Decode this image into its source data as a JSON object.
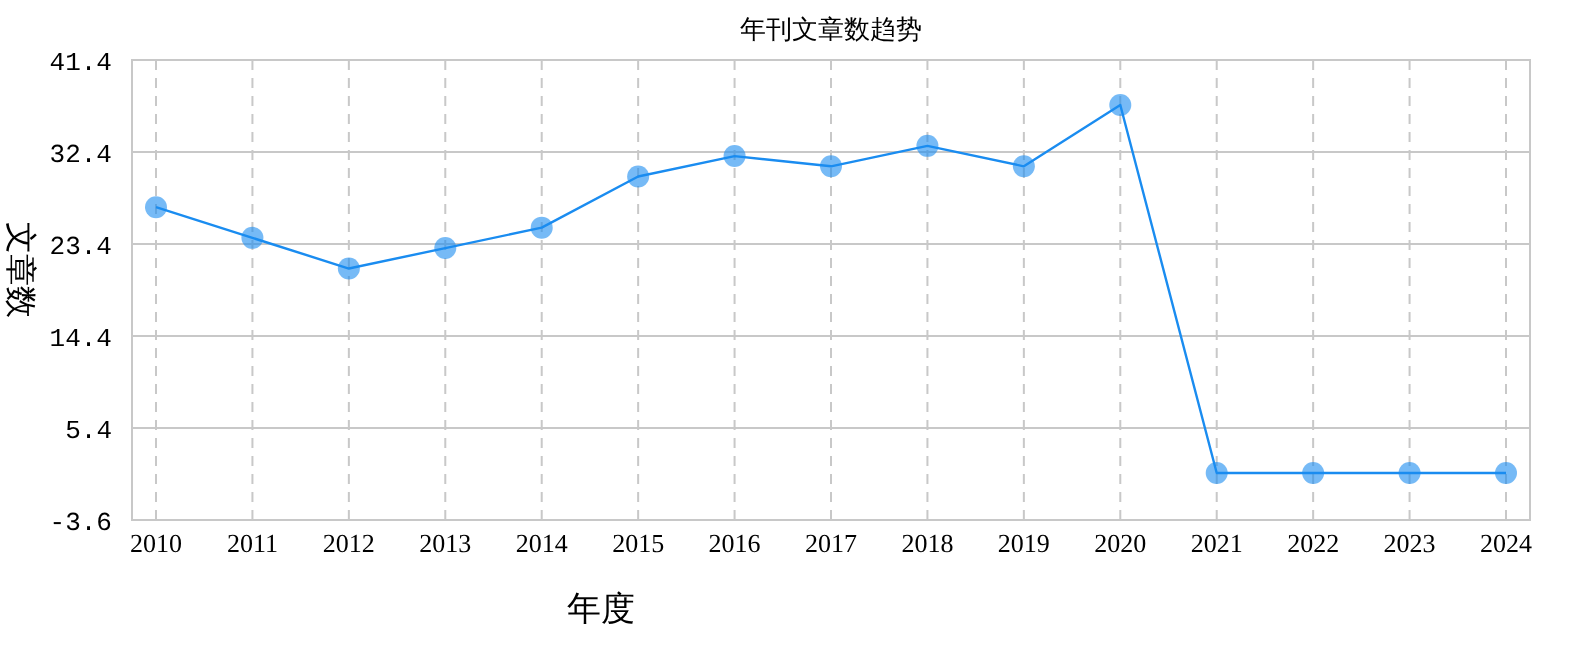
{
  "chart_data": {
    "type": "line",
    "title": "年刊文章数趋势",
    "xlabel": "年度",
    "ylabel": "文章数",
    "categories": [
      "2010",
      "2011",
      "2012",
      "2013",
      "2014",
      "2015",
      "2016",
      "2017",
      "2018",
      "2019",
      "2020",
      "2021",
      "2022",
      "2023",
      "2024"
    ],
    "series": [
      {
        "color": "#1a8cf0",
        "values": [
          27,
          24,
          21,
          23,
          25,
          30,
          32,
          31,
          33,
          31,
          37,
          1,
          1,
          1,
          1
        ]
      }
    ],
    "ylim": [
      -3.6,
      41.4
    ],
    "yticks": [
      -3.6,
      5.4,
      14.4,
      23.4,
      32.4,
      41.4
    ],
    "grid": true,
    "marker": "circle",
    "line_style": "solid"
  }
}
